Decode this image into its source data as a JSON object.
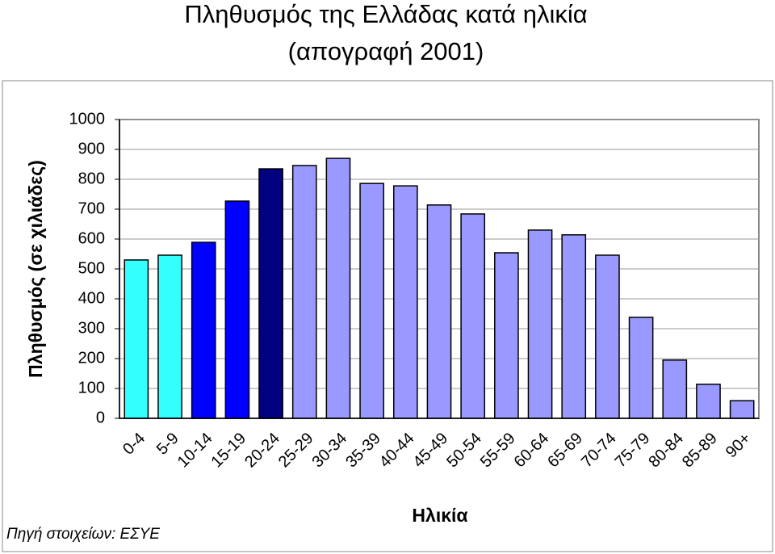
{
  "chart_data": {
    "type": "bar",
    "title": [
      "Πληθυσμός της Ελλάδας κατά ηλικία",
      "(απογραφή 2001)"
    ],
    "x_label": "Ηλικία",
    "y_label": "Πληθυσμός (σε χιλιάδες)",
    "source": "Πηγή στοιχείων: ΕΣΥΕ",
    "categories": [
      "0-4",
      "5-9",
      "10-14",
      "15-19",
      "20-24",
      "25-29",
      "30-34",
      "35-39",
      "40-44",
      "45-49",
      "50-54",
      "55-59",
      "60-64",
      "65-69",
      "70-74",
      "75-79",
      "80-84",
      "85-89",
      "90+"
    ],
    "values": [
      530,
      546,
      589,
      727,
      835,
      846,
      870,
      786,
      778,
      714,
      684,
      554,
      630,
      614,
      546,
      338,
      195,
      114,
      59
    ],
    "colors": [
      "#33ffff",
      "#33ffff",
      "#0000ff",
      "#0000ff",
      "#000080",
      "#9999ff",
      "#9999ff",
      "#9999ff",
      "#9999ff",
      "#9999ff",
      "#9999ff",
      "#9999ff",
      "#9999ff",
      "#9999ff",
      "#9999ff",
      "#9999ff",
      "#9999ff",
      "#9999ff",
      "#9999ff"
    ],
    "ylim": [
      0,
      1000
    ],
    "yticks": [
      0,
      100,
      200,
      300,
      400,
      500,
      600,
      700,
      800,
      900,
      1000
    ],
    "grid": true
  }
}
